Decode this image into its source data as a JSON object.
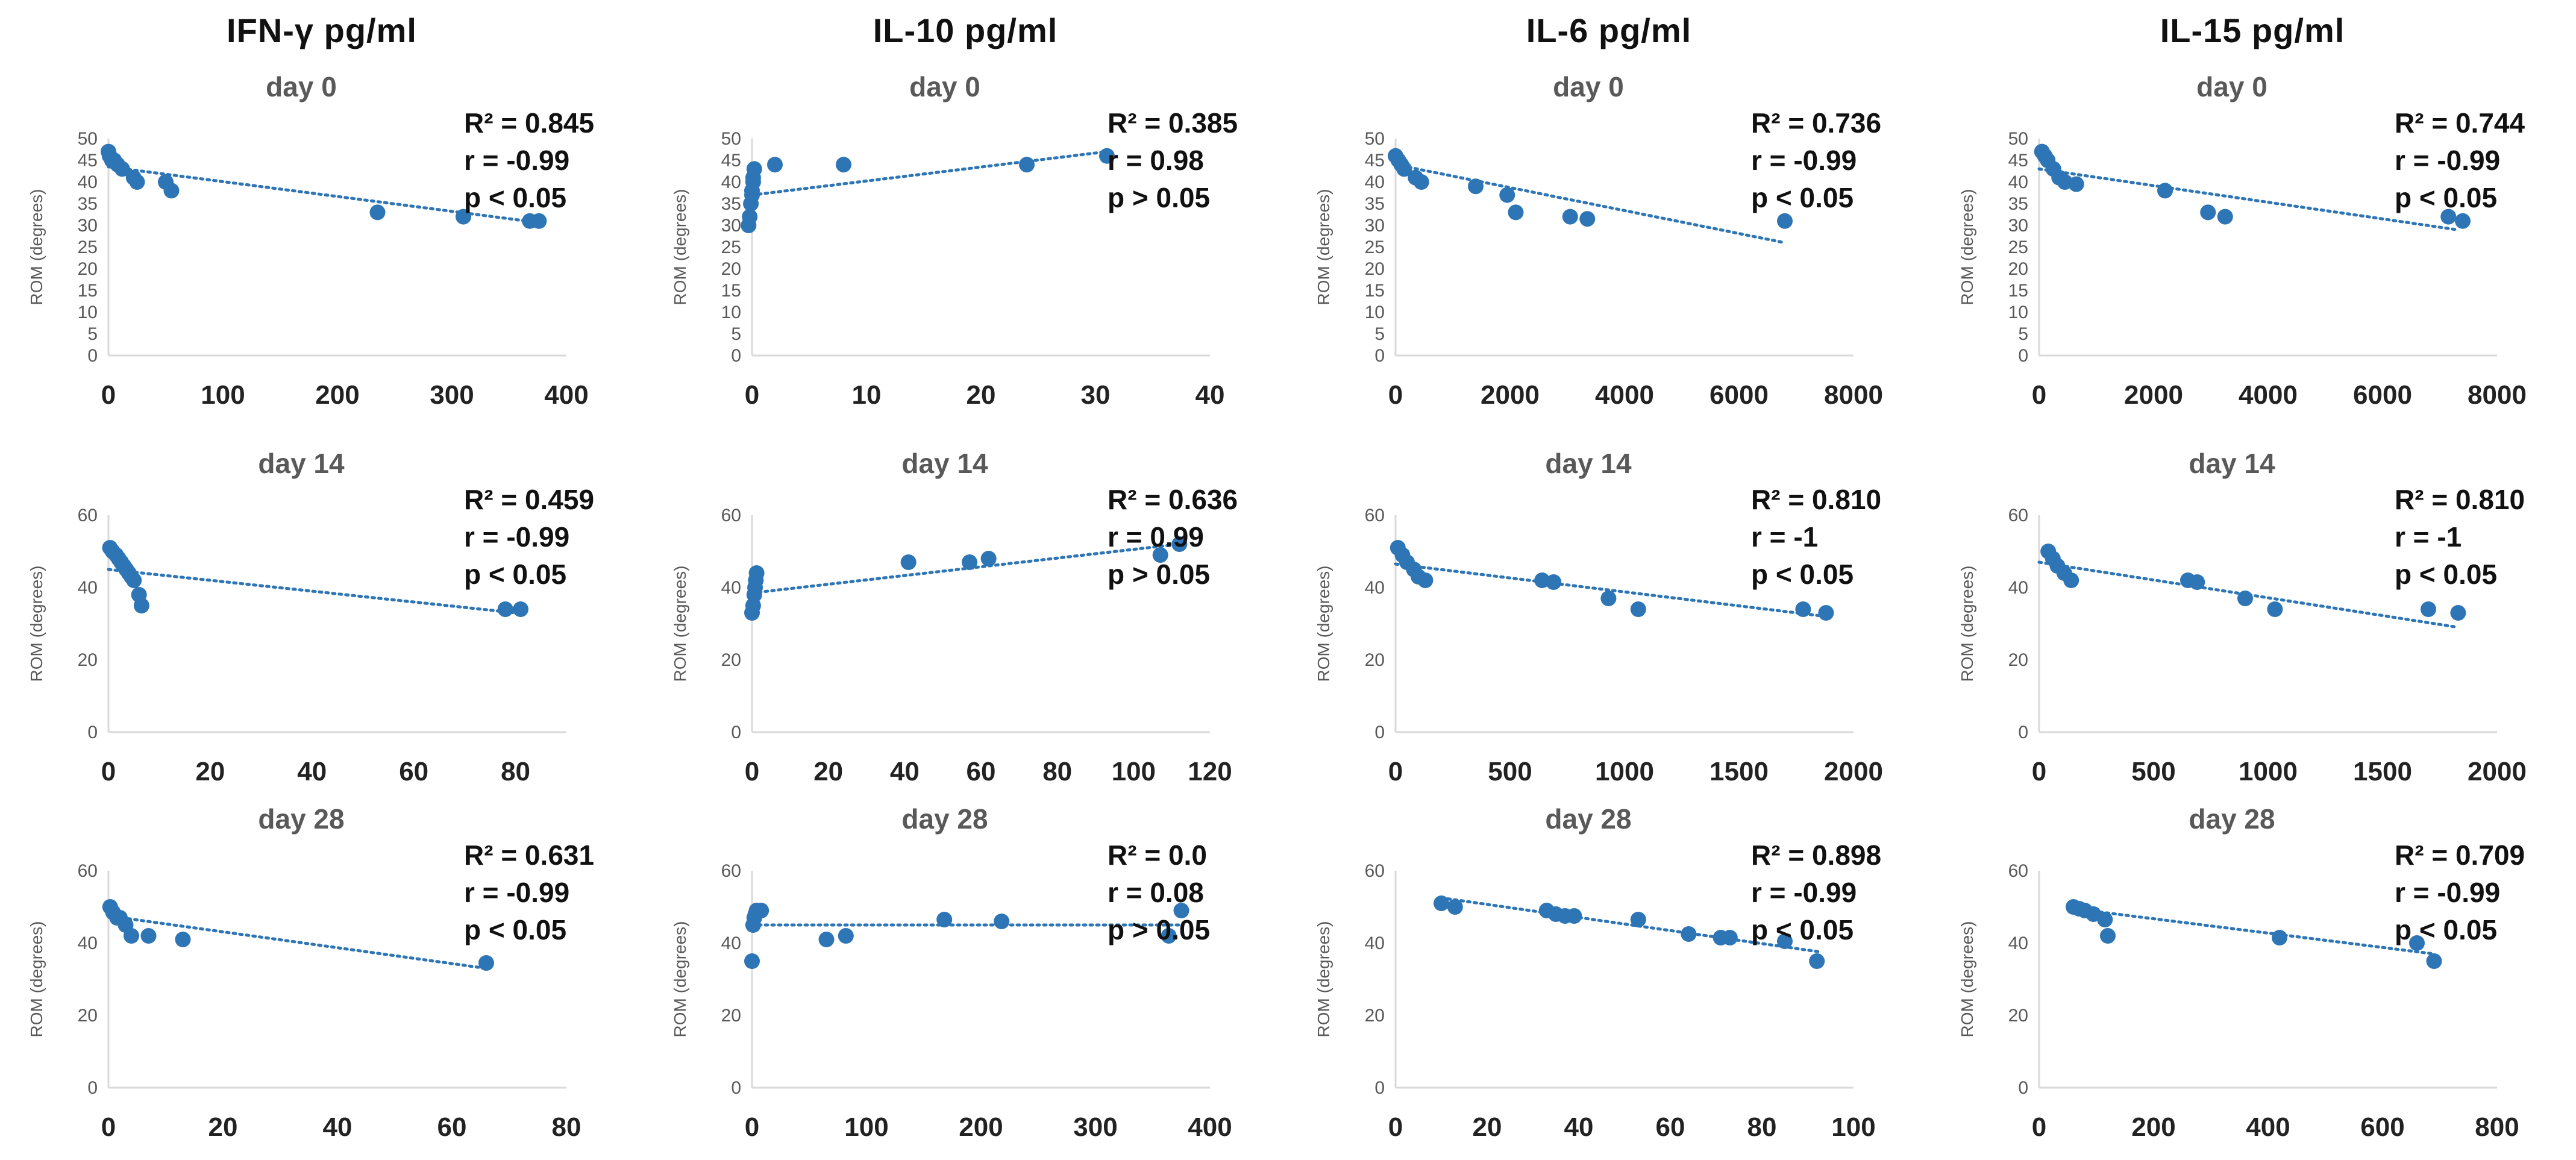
{
  "column_headers": [
    "IFN-γ pg/ml",
    "IL-10 pg/ml",
    "IL-6 pg/ml",
    "IL-15 pg/ml"
  ],
  "chart_data": [
    {
      "type": "scatter",
      "title": "day 0",
      "ylabel": "ROM (degrees)",
      "xlim": [
        0,
        400
      ],
      "ylim": [
        0,
        50
      ],
      "xticks": [
        "0",
        "100",
        "200",
        "300",
        "400"
      ],
      "yticks": [
        "0",
        "5",
        "10",
        "15",
        "20",
        "25",
        "30",
        "35",
        "40",
        "45",
        "50"
      ],
      "stats": [
        "R² = 0.845",
        "r = -0.99",
        "p < 0.05"
      ],
      "trend": [
        [
          0,
          43.5
        ],
        [
          380,
          30.5
        ]
      ],
      "points": [
        [
          0,
          47
        ],
        [
          1,
          46
        ],
        [
          3,
          45
        ],
        [
          5,
          45
        ],
        [
          8,
          44
        ],
        [
          12,
          43
        ],
        [
          22,
          41
        ],
        [
          25,
          40
        ],
        [
          50,
          40
        ],
        [
          55,
          38
        ],
        [
          235,
          33
        ],
        [
          310,
          32
        ],
        [
          368,
          31
        ],
        [
          376,
          31
        ]
      ]
    },
    {
      "type": "scatter",
      "title": "day 0",
      "ylabel": "ROM (degrees)",
      "xlim": [
        0,
        40
      ],
      "ylim": [
        0,
        50
      ],
      "xticks": [
        "0",
        "10",
        "20",
        "30",
        "40"
      ],
      "yticks": [
        "0",
        "5",
        "10",
        "15",
        "20",
        "25",
        "30",
        "35",
        "40",
        "45",
        "50"
      ],
      "stats": [
        "R² = 0.385",
        "r = 0.98",
        "p > 0.05"
      ],
      "trend": [
        [
          0,
          37
        ],
        [
          31,
          47
        ]
      ],
      "points": [
        [
          -0.3,
          30
        ],
        [
          -0.2,
          32
        ],
        [
          -0.1,
          35
        ],
        [
          0,
          37
        ],
        [
          0,
          38
        ],
        [
          0.1,
          40
        ],
        [
          0.1,
          41
        ],
        [
          0.2,
          43
        ],
        [
          2,
          44
        ],
        [
          8,
          44
        ],
        [
          24,
          44
        ],
        [
          31,
          46
        ]
      ]
    },
    {
      "type": "scatter",
      "title": "day 0",
      "ylabel": "ROM (degrees)",
      "xlim": [
        0,
        8000
      ],
      "ylim": [
        0,
        50
      ],
      "xticks": [
        "0",
        "2000",
        "4000",
        "6000",
        "8000"
      ],
      "yticks": [
        "0",
        "5",
        "10",
        "15",
        "20",
        "25",
        "30",
        "35",
        "40",
        "45",
        "50"
      ],
      "stats": [
        "R² = 0.736",
        "r = -0.99",
        "p < 0.05"
      ],
      "trend": [
        [
          0,
          44
        ],
        [
          6800,
          26
        ]
      ],
      "points": [
        [
          0,
          46
        ],
        [
          50,
          45
        ],
        [
          100,
          44
        ],
        [
          150,
          43
        ],
        [
          350,
          41
        ],
        [
          450,
          40
        ],
        [
          1400,
          39
        ],
        [
          1950,
          37
        ],
        [
          2100,
          33
        ],
        [
          3050,
          32
        ],
        [
          3350,
          31.5
        ],
        [
          6800,
          31
        ]
      ]
    },
    {
      "type": "scatter",
      "title": "day 0",
      "ylabel": "ROM (degrees)",
      "xlim": [
        0,
        8000
      ],
      "ylim": [
        0,
        50
      ],
      "xticks": [
        "0",
        "2000",
        "4000",
        "6000",
        "8000"
      ],
      "yticks": [
        "0",
        "5",
        "10",
        "15",
        "20",
        "25",
        "30",
        "35",
        "40",
        "45",
        "50"
      ],
      "stats": [
        "R² = 0.744",
        "r = -0.99",
        "p < 0.05"
      ],
      "trend": [
        [
          0,
          43
        ],
        [
          7300,
          29
        ]
      ],
      "points": [
        [
          50,
          47
        ],
        [
          100,
          46
        ],
        [
          150,
          45
        ],
        [
          250,
          43
        ],
        [
          350,
          41
        ],
        [
          450,
          40
        ],
        [
          650,
          39.5
        ],
        [
          2200,
          38
        ],
        [
          2950,
          33
        ],
        [
          3250,
          32
        ],
        [
          7150,
          32
        ],
        [
          7400,
          31
        ]
      ]
    },
    {
      "type": "scatter",
      "title": "day 14",
      "ylabel": "ROM (degrees)",
      "xlim": [
        0,
        90
      ],
      "ylim": [
        0,
        60
      ],
      "xticks": [
        "0",
        "20",
        "40",
        "60",
        "80"
      ],
      "yticks": [
        "0",
        "20",
        "40",
        "60"
      ],
      "stats": [
        "R² = 0.459",
        "r = -0.99",
        "p < 0.05"
      ],
      "trend": [
        [
          0,
          45
        ],
        [
          80,
          33
        ]
      ],
      "points": [
        [
          0.3,
          51
        ],
        [
          0.8,
          50
        ],
        [
          1.5,
          49
        ],
        [
          2,
          48
        ],
        [
          2.5,
          47
        ],
        [
          3,
          46
        ],
        [
          3.5,
          45
        ],
        [
          4,
          44
        ],
        [
          4.5,
          43
        ],
        [
          5,
          42
        ],
        [
          6,
          38
        ],
        [
          6.5,
          35
        ],
        [
          78,
          34
        ],
        [
          81,
          34
        ]
      ]
    },
    {
      "type": "scatter",
      "title": "day 14",
      "ylabel": "ROM (degrees)",
      "xlim": [
        0,
        120
      ],
      "ylim": [
        0,
        60
      ],
      "xticks": [
        "0",
        "20",
        "40",
        "60",
        "80",
        "100",
        "120"
      ],
      "yticks": [
        "0",
        "20",
        "40",
        "60"
      ],
      "stats": [
        "R² = 0.636",
        "r = 0.99",
        "p > 0.05"
      ],
      "trend": [
        [
          0,
          38.5
        ],
        [
          112,
          52
        ]
      ],
      "points": [
        [
          0,
          33
        ],
        [
          0.3,
          35
        ],
        [
          0.6,
          38
        ],
        [
          0.8,
          40
        ],
        [
          1,
          42
        ],
        [
          1.2,
          44
        ],
        [
          41,
          47
        ],
        [
          57,
          47
        ],
        [
          62,
          48
        ],
        [
          107,
          49
        ],
        [
          112,
          52
        ]
      ]
    },
    {
      "type": "scatter",
      "title": "day 14",
      "ylabel": "ROM (degrees)",
      "xlim": [
        0,
        2000
      ],
      "ylim": [
        0,
        60
      ],
      "xticks": [
        "0",
        "500",
        "1000",
        "1500",
        "2000"
      ],
      "yticks": [
        "0",
        "20",
        "40",
        "60"
      ],
      "stats": [
        "R² = 0.810",
        "r = -1",
        "p < 0.05"
      ],
      "trend": [
        [
          0,
          46.5
        ],
        [
          1880,
          32
        ]
      ],
      "points": [
        [
          10,
          51
        ],
        [
          30,
          49
        ],
        [
          50,
          47
        ],
        [
          80,
          45
        ],
        [
          100,
          43
        ],
        [
          130,
          42
        ],
        [
          640,
          42
        ],
        [
          690,
          41.5
        ],
        [
          930,
          37
        ],
        [
          1060,
          34
        ],
        [
          1780,
          34
        ],
        [
          1880,
          33
        ]
      ]
    },
    {
      "type": "scatter",
      "title": "day 14",
      "ylabel": "ROM (degrees)",
      "xlim": [
        0,
        2000
      ],
      "ylim": [
        0,
        60
      ],
      "xticks": [
        "0",
        "500",
        "1000",
        "1500",
        "2000"
      ],
      "yticks": [
        "0",
        "20",
        "40",
        "60"
      ],
      "stats": [
        "R² = 0.810",
        "r = -1",
        "p < 0.05"
      ],
      "trend": [
        [
          0,
          47
        ],
        [
          1830,
          29
        ]
      ],
      "points": [
        [
          40,
          50
        ],
        [
          60,
          48
        ],
        [
          80,
          46
        ],
        [
          110,
          44
        ],
        [
          140,
          42
        ],
        [
          650,
          42
        ],
        [
          690,
          41.5
        ],
        [
          900,
          37
        ],
        [
          1030,
          34
        ],
        [
          1700,
          34
        ],
        [
          1830,
          33
        ]
      ]
    },
    {
      "type": "scatter",
      "title": "day 28",
      "ylabel": "ROM (degrees)",
      "xlim": [
        0,
        80
      ],
      "ylim": [
        0,
        60
      ],
      "xticks": [
        "0",
        "20",
        "40",
        "60",
        "80"
      ],
      "yticks": [
        "0",
        "20",
        "40",
        "60"
      ],
      "stats": [
        "R² = 0.631",
        "r = -0.99",
        "p < 0.05"
      ],
      "trend": [
        [
          0,
          47.5
        ],
        [
          66,
          33
        ]
      ],
      "points": [
        [
          0.3,
          50
        ],
        [
          0.8,
          48.5
        ],
        [
          1.5,
          47
        ],
        [
          2,
          47
        ],
        [
          3,
          45
        ],
        [
          4,
          42
        ],
        [
          7,
          42
        ],
        [
          13,
          41
        ],
        [
          66,
          34.5
        ]
      ]
    },
    {
      "type": "scatter",
      "title": "day 28",
      "ylabel": "ROM (degrees)",
      "xlim": [
        0,
        400
      ],
      "ylim": [
        0,
        60
      ],
      "xticks": [
        "0",
        "100",
        "200",
        "300",
        "400"
      ],
      "yticks": [
        "0",
        "20",
        "40",
        "60"
      ],
      "stats": [
        "R² = 0.0",
        "r = 0.08",
        "p > 0.05"
      ],
      "trend": [
        [
          0,
          45
        ],
        [
          375,
          45
        ]
      ],
      "points": [
        [
          0,
          35
        ],
        [
          1,
          45
        ],
        [
          2,
          47
        ],
        [
          3,
          48
        ],
        [
          4,
          49
        ],
        [
          8,
          49
        ],
        [
          65,
          41
        ],
        [
          82,
          42
        ],
        [
          168,
          46.5
        ],
        [
          218,
          46
        ],
        [
          364,
          42
        ],
        [
          375,
          49
        ]
      ]
    },
    {
      "type": "scatter",
      "title": "day 28",
      "ylabel": "ROM (degrees)",
      "xlim": [
        0,
        100
      ],
      "ylim": [
        0,
        60
      ],
      "xticks": [
        "0",
        "20",
        "40",
        "60",
        "80",
        "100"
      ],
      "yticks": [
        "0",
        "20",
        "40",
        "60"
      ],
      "stats": [
        "R² = 0.898",
        "r = -0.99",
        "p < 0.05"
      ],
      "trend": [
        [
          10,
          52.5
        ],
        [
          93,
          37.5
        ]
      ],
      "points": [
        [
          10,
          51
        ],
        [
          13,
          50
        ],
        [
          33,
          49
        ],
        [
          35,
          48
        ],
        [
          37,
          47.5
        ],
        [
          39,
          47.5
        ],
        [
          53,
          46.5
        ],
        [
          64,
          42.5
        ],
        [
          71,
          41.5
        ],
        [
          73,
          41.5
        ],
        [
          85,
          40.5
        ],
        [
          92,
          35
        ]
      ]
    },
    {
      "type": "scatter",
      "title": "day 28",
      "ylabel": "ROM (degrees)",
      "xlim": [
        0,
        800
      ],
      "ylim": [
        0,
        60
      ],
      "xticks": [
        "0",
        "200",
        "400",
        "600",
        "800"
      ],
      "yticks": [
        "0",
        "20",
        "40",
        "60"
      ],
      "stats": [
        "R² = 0.709",
        "r = -0.99",
        "p < 0.05"
      ],
      "trend": [
        [
          60,
          49.5
        ],
        [
          690,
          37
        ]
      ],
      "points": [
        [
          60,
          50
        ],
        [
          70,
          49.5
        ],
        [
          80,
          49
        ],
        [
          95,
          48
        ],
        [
          115,
          46.5
        ],
        [
          120,
          42
        ],
        [
          420,
          41.5
        ],
        [
          660,
          40
        ],
        [
          690,
          35
        ]
      ]
    }
  ]
}
